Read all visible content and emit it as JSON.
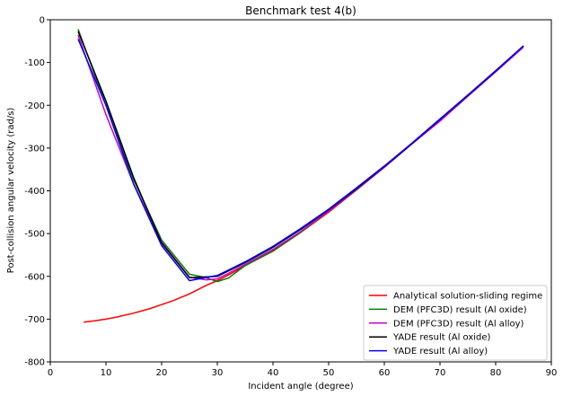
{
  "chart_data": {
    "type": "line",
    "title": "Benchmark test 4(b)",
    "xlabel": "Incident angle (degree)",
    "ylabel": "Post-collision angular velocity (rad/s)",
    "xlim": [
      0,
      90
    ],
    "ylim": [
      -800,
      0
    ],
    "xticks": [
      0,
      10,
      20,
      30,
      40,
      50,
      60,
      70,
      80,
      90
    ],
    "yticks": [
      0,
      -100,
      -200,
      -300,
      -400,
      -500,
      -600,
      -700,
      -800
    ],
    "grid": false,
    "legend_position": "bottom-right",
    "series": [
      {
        "name": "Analytical solution-sliding regime",
        "color": "#ff0000",
        "x": [
          6,
          8,
          10,
          12,
          15,
          18,
          20,
          22,
          25,
          28,
          30,
          32,
          35,
          40,
          45,
          50,
          55,
          60,
          65,
          70,
          75,
          80,
          85
        ],
        "y": [
          -707,
          -704,
          -700,
          -695,
          -686,
          -675,
          -666,
          -657,
          -641,
          -621,
          -610,
          -597,
          -575,
          -541,
          -497,
          -450,
          -398,
          -345,
          -290,
          -235,
          -178,
          -121,
          -62
        ]
      },
      {
        "name": "DEM (PFC3D) result (Al oxide)",
        "color": "#008000",
        "x": [
          5,
          10,
          15,
          20,
          25,
          28,
          30,
          32,
          35,
          40,
          45,
          50,
          55,
          60,
          65,
          70,
          75,
          80,
          85
        ],
        "y": [
          -22,
          -200,
          -375,
          -515,
          -595,
          -603,
          -612,
          -604,
          -575,
          -540,
          -497,
          -447,
          -398,
          -345,
          -290,
          -236,
          -178,
          -121,
          -62
        ]
      },
      {
        "name": "DEM (PFC3D) result (Al alloy)",
        "color": "#cc00cc",
        "x": [
          5,
          10,
          15,
          20,
          25,
          28,
          30,
          32,
          35,
          40,
          45,
          50,
          55,
          60,
          65,
          70,
          75,
          80,
          85
        ],
        "y": [
          -35,
          -222,
          -385,
          -520,
          -602,
          -608,
          -606,
          -593,
          -572,
          -537,
          -495,
          -447,
          -397,
          -345,
          -290,
          -237,
          -179,
          -122,
          -64
        ]
      },
      {
        "name": "YADE result (Al oxide)",
        "color": "#000000",
        "x": [
          5,
          10,
          15,
          20,
          25,
          30,
          35,
          40,
          45,
          50,
          55,
          60,
          65,
          70,
          75,
          80,
          85
        ],
        "y": [
          -27,
          -190,
          -370,
          -522,
          -603,
          -600,
          -568,
          -532,
          -490,
          -444,
          -395,
          -343,
          -289,
          -233,
          -177,
          -120,
          -61
        ]
      },
      {
        "name": "YADE result (Al alloy)",
        "color": "#0000ff",
        "x": [
          5,
          10,
          15,
          20,
          25,
          30,
          35,
          40,
          45,
          50,
          55,
          60,
          65,
          70,
          75,
          80,
          85
        ],
        "y": [
          -45,
          -200,
          -385,
          -528,
          -610,
          -598,
          -566,
          -530,
          -488,
          -443,
          -393,
          -342,
          -288,
          -232,
          -176,
          -119,
          -61
        ]
      }
    ]
  }
}
